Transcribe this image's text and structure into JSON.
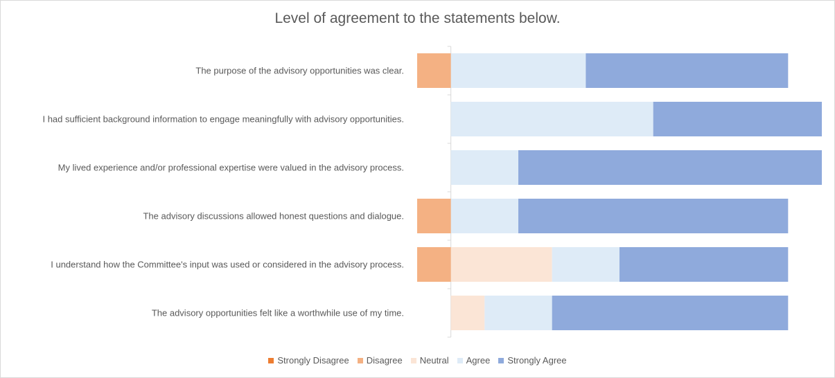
{
  "chart_data": {
    "type": "diverging-bar",
    "title": "Level of agreement to the statements below.",
    "categories": [
      "The purpose of the advisory opportunities was clear.",
      "I had sufficient background information to engage meaningfully with advisory opportunities.",
      "My lived experience and/or professional expertise were valued in the advisory process.",
      "The advisory discussions allowed honest questions and dialogue.",
      "I understand how the Committee's input was used or considered in the advisory process.",
      "The advisory opportunities felt like a worthwhile use of my time."
    ],
    "series": [
      {
        "name": "Strongly Disagree",
        "color": "#ed7d31",
        "values": [
          0,
          0,
          0,
          0,
          0,
          0
        ]
      },
      {
        "name": "Disagree",
        "color": "#f4b183",
        "values": [
          1,
          0,
          0,
          1,
          1,
          0
        ]
      },
      {
        "name": "Neutral",
        "color": "#fbe5d6",
        "values": [
          0,
          0,
          0,
          0,
          3,
          1
        ]
      },
      {
        "name": "Agree",
        "color": "#deebf7",
        "values": [
          4,
          6,
          2,
          2,
          2,
          2
        ]
      },
      {
        "name": "Strongly Agree",
        "color": "#8faadc",
        "values": [
          6,
          5,
          9,
          8,
          5,
          7
        ]
      }
    ],
    "xlim": [
      -1,
      11
    ],
    "legend": "bottom"
  }
}
